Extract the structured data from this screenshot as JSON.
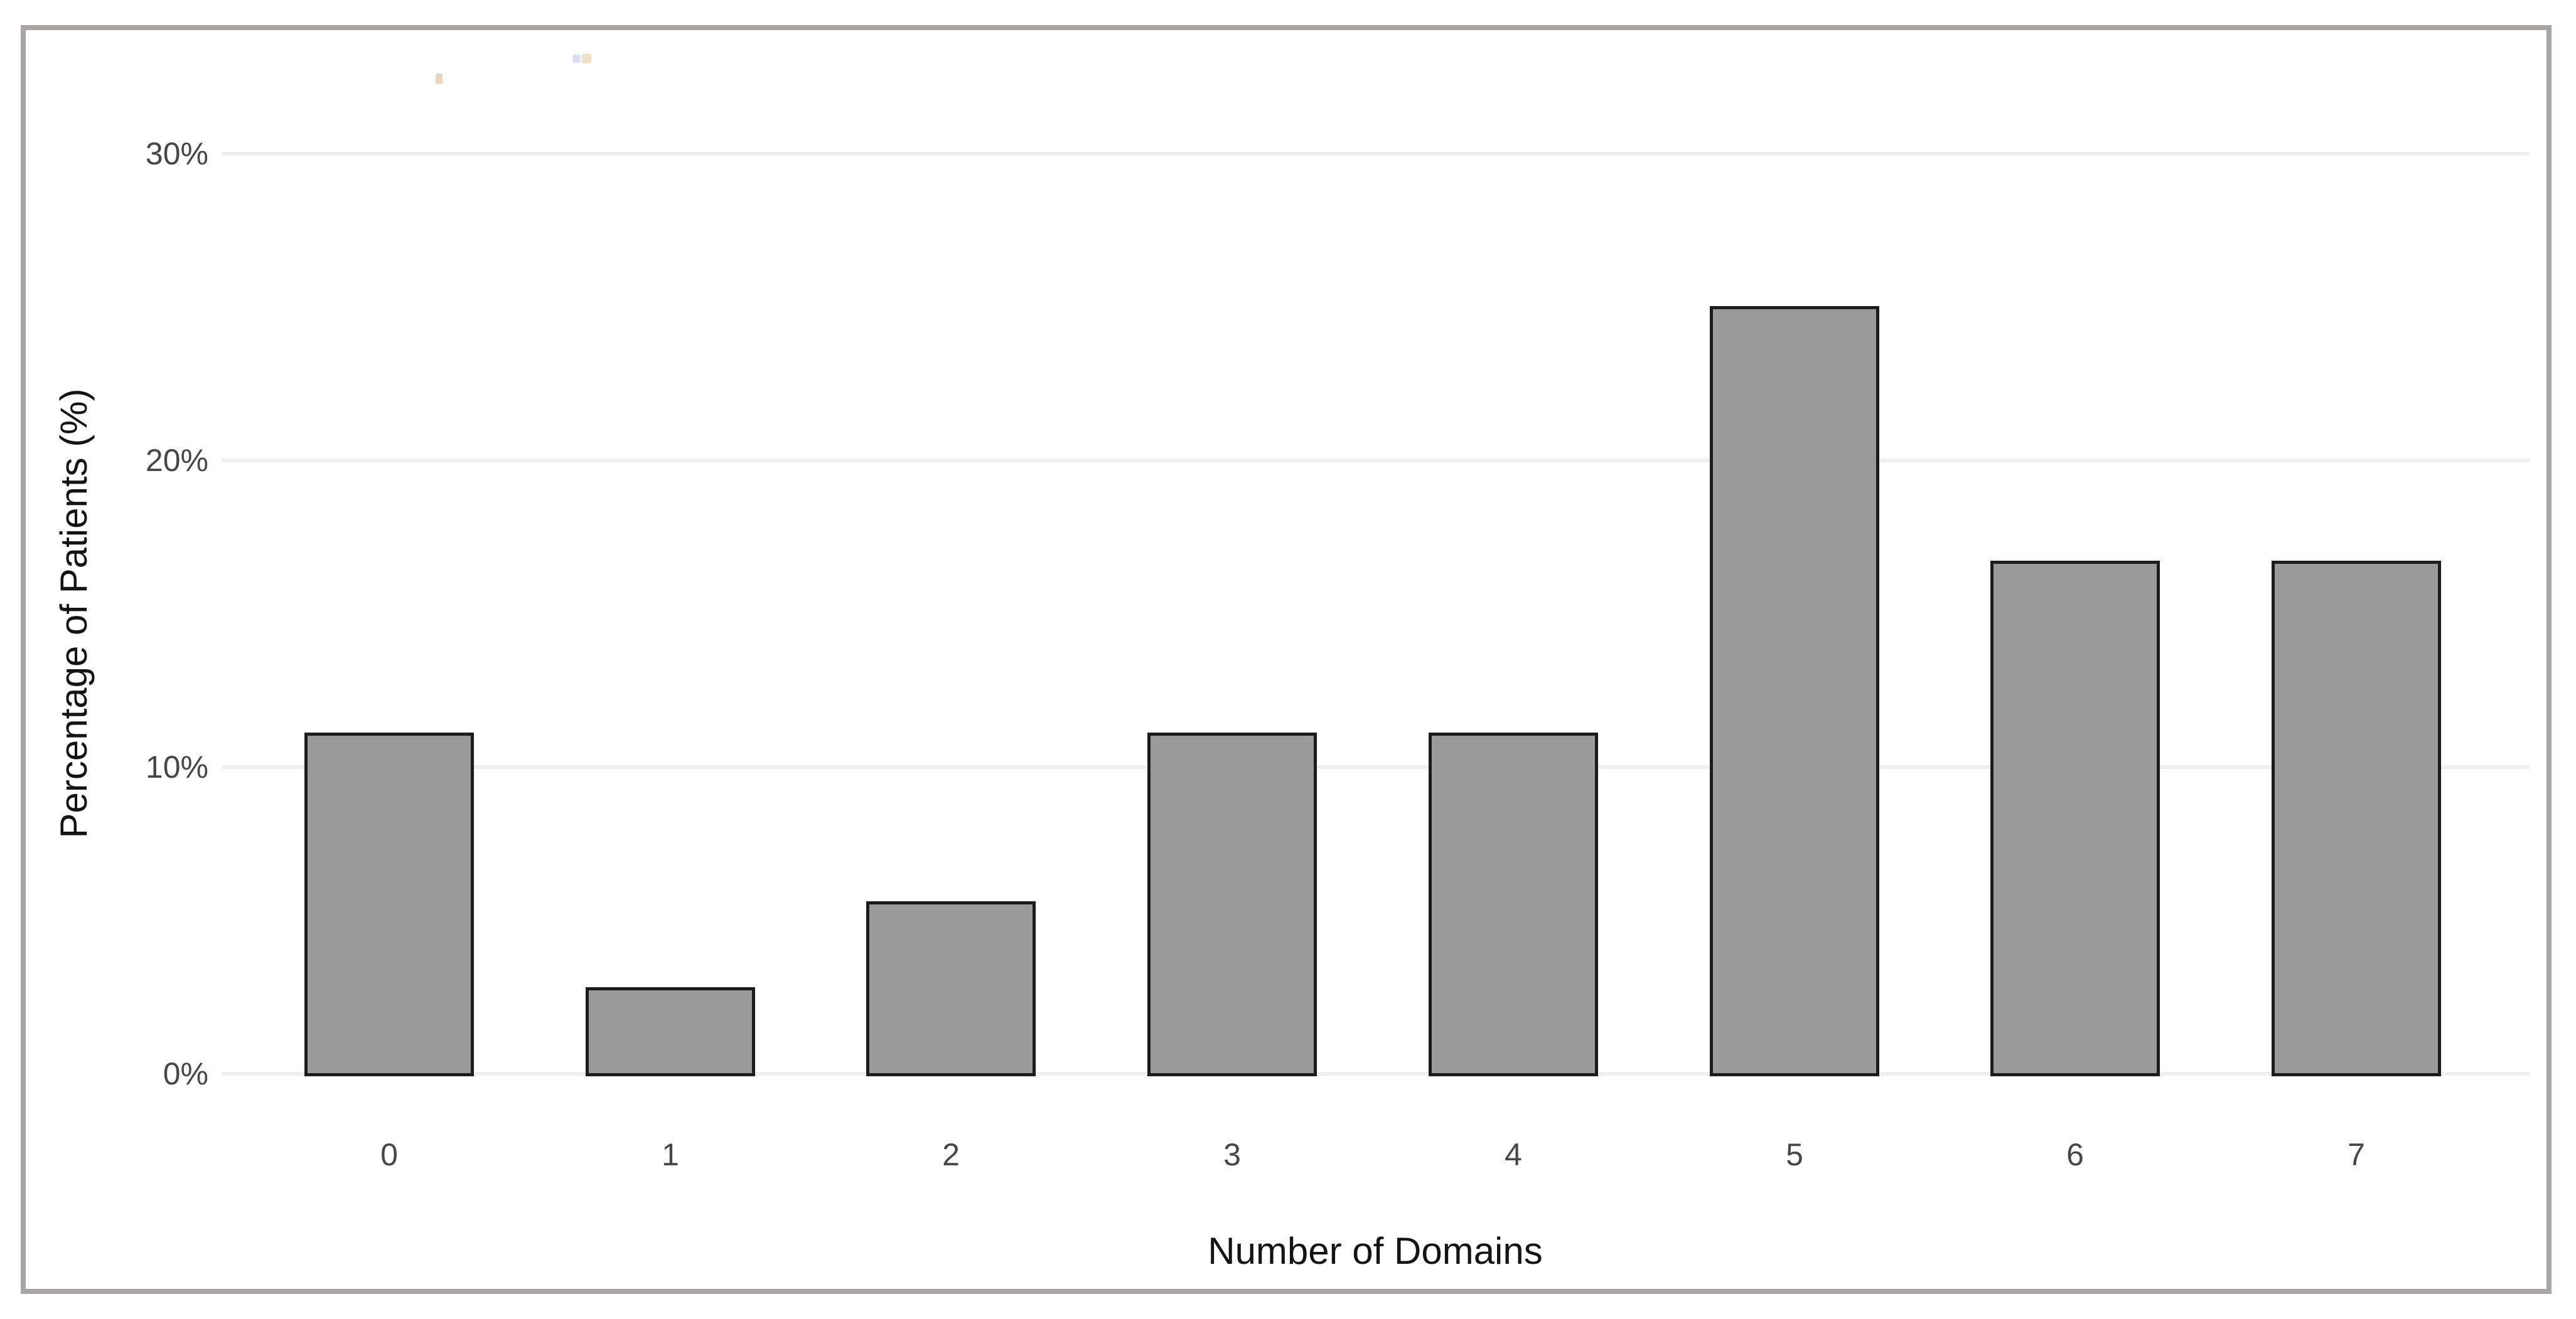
{
  "chart_data": {
    "type": "bar",
    "title": "",
    "xlabel": "Number of Domains",
    "ylabel": "Percentage of Patients (%)",
    "categories": [
      "0",
      "1",
      "2",
      "3",
      "4",
      "5",
      "6",
      "7"
    ],
    "values": [
      11.1,
      2.8,
      5.6,
      11.1,
      11.1,
      25.0,
      16.7,
      16.7
    ],
    "ylim": [
      0,
      30
    ],
    "yticks": [
      {
        "value": 0,
        "label": "0%"
      },
      {
        "value": 10,
        "label": "10%"
      },
      {
        "value": 20,
        "label": "20%"
      },
      {
        "value": 30,
        "label": "30%"
      }
    ],
    "grid": true,
    "legend_position": "none",
    "colors": {
      "background": "#ffffff",
      "frame_border": "#a9a5a3",
      "gridline": "#efefef",
      "bar_fill": "#9a9a9a",
      "bar_border": "#1c1c1c",
      "tick_text": "#474747",
      "axis_title_text": "#141414"
    }
  }
}
